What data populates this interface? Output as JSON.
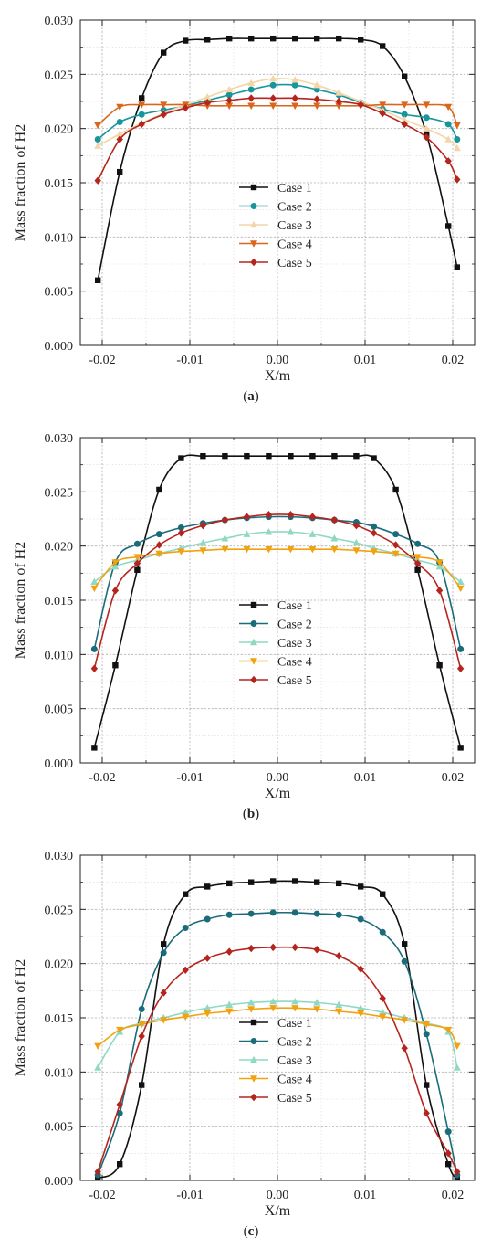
{
  "figure": {
    "panels": [
      {
        "caption_open": "(",
        "caption_letter": "a",
        "caption_close": ")"
      },
      {
        "caption_open": "(",
        "caption_letter": "b",
        "caption_close": ")"
      },
      {
        "caption_open": "(",
        "caption_letter": "c",
        "caption_close": ")"
      }
    ]
  },
  "chart_data": [
    {
      "type": "line",
      "xlabel": "X/m",
      "ylabel": "Mass fraction of H2",
      "xlim": [
        -0.0225,
        0.0225
      ],
      "ylim": [
        0,
        0.03
      ],
      "xticks": [
        "-0.02",
        "-0.01",
        "0.00",
        "0.01",
        "0.02"
      ],
      "yticks": [
        "0.000",
        "0.005",
        "0.010",
        "0.015",
        "0.020",
        "0.025",
        "0.030"
      ],
      "grid": true,
      "legend_position": "center-bottom",
      "series": [
        {
          "name": "Case 1",
          "color": "#111111",
          "marker": "square",
          "x": [
            -0.0205,
            -0.018,
            -0.0155,
            -0.013,
            -0.0105,
            -0.008,
            -0.0055,
            -0.003,
            -0.0005,
            0.002,
            0.0045,
            0.007,
            0.0095,
            0.012,
            0.0145,
            0.017,
            0.0195,
            0.0205
          ],
          "y": [
            0.006,
            0.016,
            0.0228,
            0.027,
            0.0281,
            0.0282,
            0.0283,
            0.0283,
            0.0283,
            0.0283,
            0.0283,
            0.0283,
            0.0282,
            0.0276,
            0.0248,
            0.0195,
            0.011,
            0.0072
          ]
        },
        {
          "name": "Case 2",
          "color": "#16969a",
          "marker": "circle",
          "x": [
            -0.0205,
            -0.018,
            -0.0155,
            -0.013,
            -0.0105,
            -0.008,
            -0.0055,
            -0.003,
            -0.0005,
            0.002,
            0.0045,
            0.007,
            0.0095,
            0.012,
            0.0145,
            0.017,
            0.0195,
            0.0205
          ],
          "y": [
            0.019,
            0.0206,
            0.0213,
            0.0217,
            0.0221,
            0.0226,
            0.0231,
            0.0236,
            0.024,
            0.024,
            0.0236,
            0.0231,
            0.0224,
            0.0218,
            0.0213,
            0.021,
            0.0204,
            0.019
          ]
        },
        {
          "name": "Case 3",
          "color": "#f2d6a8",
          "marker": "triangle-up",
          "x": [
            -0.0205,
            -0.018,
            -0.0155,
            -0.013,
            -0.0105,
            -0.008,
            -0.0055,
            -0.003,
            -0.0005,
            0.002,
            0.0045,
            0.007,
            0.0095,
            0.012,
            0.0145,
            0.017,
            0.0195,
            0.0205
          ],
          "y": [
            0.0184,
            0.0195,
            0.0205,
            0.0214,
            0.0222,
            0.0229,
            0.0236,
            0.0242,
            0.0246,
            0.0245,
            0.024,
            0.0233,
            0.0225,
            0.0217,
            0.0208,
            0.02,
            0.019,
            0.0182
          ]
        },
        {
          "name": "Case 4",
          "color": "#d9661a",
          "marker": "triangle-down",
          "x": [
            -0.0205,
            -0.018,
            -0.0155,
            -0.013,
            -0.0105,
            -0.008,
            -0.0055,
            -0.003,
            -0.0005,
            0.002,
            0.0045,
            0.007,
            0.0095,
            0.012,
            0.0145,
            0.017,
            0.0195,
            0.0205
          ],
          "y": [
            0.0203,
            0.022,
            0.0222,
            0.0222,
            0.0222,
            0.0221,
            0.0221,
            0.0221,
            0.0221,
            0.0221,
            0.0221,
            0.0221,
            0.0221,
            0.0222,
            0.0222,
            0.0222,
            0.022,
            0.0203
          ]
        },
        {
          "name": "Case 5",
          "color": "#b5251e",
          "marker": "diamond",
          "x": [
            -0.0205,
            -0.018,
            -0.0155,
            -0.013,
            -0.0105,
            -0.008,
            -0.0055,
            -0.003,
            -0.0005,
            0.002,
            0.0045,
            0.007,
            0.0095,
            0.012,
            0.0145,
            0.017,
            0.0195,
            0.0205
          ],
          "y": [
            0.0152,
            0.019,
            0.0204,
            0.0213,
            0.0219,
            0.0224,
            0.0226,
            0.0228,
            0.0228,
            0.0228,
            0.0227,
            0.0225,
            0.0222,
            0.0214,
            0.0204,
            0.0192,
            0.017,
            0.0153
          ]
        }
      ]
    },
    {
      "type": "line",
      "xlabel": "X/m",
      "ylabel": "Mass fraction of H2",
      "xlim": [
        -0.0225,
        0.0225
      ],
      "ylim": [
        0,
        0.03
      ],
      "xticks": [
        "-0.02",
        "-0.01",
        "0.00",
        "0.01",
        "0.02"
      ],
      "yticks": [
        "0.000",
        "0.005",
        "0.010",
        "0.015",
        "0.020",
        "0.025",
        "0.030"
      ],
      "grid": true,
      "legend_position": "center-bottom",
      "series": [
        {
          "name": "Case 1",
          "color": "#111111",
          "marker": "square",
          "x": [
            -0.0209,
            -0.0185,
            -0.016,
            -0.0135,
            -0.011,
            -0.0085,
            -0.006,
            -0.0035,
            -0.001,
            0.0015,
            0.004,
            0.0065,
            0.009,
            0.011,
            0.0135,
            0.016,
            0.0185,
            0.0209
          ],
          "y": [
            0.0014,
            0.009,
            0.0178,
            0.0252,
            0.0281,
            0.0283,
            0.0283,
            0.0283,
            0.0283,
            0.0283,
            0.0283,
            0.0283,
            0.0283,
            0.0281,
            0.0252,
            0.0178,
            0.009,
            0.0014
          ]
        },
        {
          "name": "Case 2",
          "color": "#1a6c7a",
          "marker": "circle",
          "x": [
            -0.0209,
            -0.0185,
            -0.016,
            -0.0135,
            -0.011,
            -0.0085,
            -0.006,
            -0.0035,
            -0.001,
            0.0015,
            0.004,
            0.0065,
            0.009,
            0.011,
            0.0135,
            0.016,
            0.0185,
            0.0209
          ],
          "y": [
            0.0105,
            0.0185,
            0.0202,
            0.0211,
            0.0217,
            0.0221,
            0.0224,
            0.0226,
            0.0227,
            0.0227,
            0.0226,
            0.0224,
            0.0222,
            0.0218,
            0.0211,
            0.0202,
            0.0185,
            0.0105
          ]
        },
        {
          "name": "Case 3",
          "color": "#8fd8c4",
          "marker": "triangle-up",
          "x": [
            -0.0209,
            -0.0185,
            -0.016,
            -0.0135,
            -0.011,
            -0.0085,
            -0.006,
            -0.0035,
            -0.001,
            0.0015,
            0.004,
            0.0065,
            0.009,
            0.011,
            0.0135,
            0.016,
            0.0185,
            0.0209
          ],
          "y": [
            0.0167,
            0.0181,
            0.0187,
            0.0193,
            0.0198,
            0.0203,
            0.0207,
            0.0211,
            0.0213,
            0.0213,
            0.0211,
            0.0207,
            0.0203,
            0.0198,
            0.0193,
            0.0187,
            0.0181,
            0.0167
          ]
        },
        {
          "name": "Case 4",
          "color": "#f2a20f",
          "marker": "triangle-down",
          "x": [
            -0.0209,
            -0.0185,
            -0.016,
            -0.0135,
            -0.011,
            -0.0085,
            -0.006,
            -0.0035,
            -0.001,
            0.0015,
            0.004,
            0.0065,
            0.009,
            0.011,
            0.0135,
            0.016,
            0.0185,
            0.0209
          ],
          "y": [
            0.0161,
            0.0185,
            0.019,
            0.0193,
            0.0195,
            0.0196,
            0.0197,
            0.0197,
            0.0197,
            0.0197,
            0.0197,
            0.0197,
            0.0196,
            0.0195,
            0.0193,
            0.019,
            0.0185,
            0.0161
          ]
        },
        {
          "name": "Case 5",
          "color": "#b5251e",
          "marker": "diamond",
          "x": [
            -0.0209,
            -0.0185,
            -0.016,
            -0.0135,
            -0.011,
            -0.0085,
            -0.006,
            -0.0035,
            -0.001,
            0.0015,
            0.004,
            0.0065,
            0.009,
            0.011,
            0.0135,
            0.016,
            0.0185,
            0.0209
          ],
          "y": [
            0.0087,
            0.0159,
            0.0184,
            0.0201,
            0.0212,
            0.0219,
            0.0224,
            0.0227,
            0.0229,
            0.0229,
            0.0227,
            0.0224,
            0.0219,
            0.0212,
            0.0201,
            0.0184,
            0.0159,
            0.0087
          ]
        }
      ]
    },
    {
      "type": "line",
      "xlabel": "X/m",
      "ylabel": "Mass fraction of H2",
      "xlim": [
        -0.0225,
        0.0225
      ],
      "ylim": [
        0,
        0.03
      ],
      "xticks": [
        "-0.02",
        "-0.01",
        "0.00",
        "0.01",
        "0.02"
      ],
      "yticks": [
        "0.000",
        "0.005",
        "0.010",
        "0.015",
        "0.020",
        "0.025",
        "0.030"
      ],
      "grid": true,
      "legend_position": "center-bottom",
      "series": [
        {
          "name": "Case 1",
          "color": "#111111",
          "marker": "square",
          "x": [
            -0.0205,
            -0.018,
            -0.0155,
            -0.013,
            -0.0105,
            -0.008,
            -0.0055,
            -0.003,
            -0.0005,
            0.002,
            0.0045,
            0.007,
            0.0095,
            0.012,
            0.0145,
            0.017,
            0.0195,
            0.0205
          ],
          "y": [
            0.0002,
            0.0015,
            0.0088,
            0.0218,
            0.0264,
            0.0271,
            0.0274,
            0.0275,
            0.0276,
            0.0276,
            0.0275,
            0.0274,
            0.0271,
            0.0264,
            0.0218,
            0.0088,
            0.0015,
            0.0002
          ]
        },
        {
          "name": "Case 2",
          "color": "#1a6c7a",
          "marker": "circle",
          "x": [
            -0.0205,
            -0.018,
            -0.0155,
            -0.013,
            -0.0105,
            -0.008,
            -0.0055,
            -0.003,
            -0.0005,
            0.002,
            0.0045,
            0.007,
            0.0095,
            0.012,
            0.0145,
            0.017,
            0.0195,
            0.0205
          ],
          "y": [
            0.0005,
            0.0062,
            0.0158,
            0.021,
            0.0233,
            0.0241,
            0.0245,
            0.0246,
            0.0247,
            0.0247,
            0.0246,
            0.0245,
            0.0241,
            0.0229,
            0.0202,
            0.0135,
            0.0045,
            0.0005
          ]
        },
        {
          "name": "Case 3",
          "color": "#8fd8c4",
          "marker": "triangle-up",
          "x": [
            -0.0205,
            -0.018,
            -0.0155,
            -0.013,
            -0.0105,
            -0.008,
            -0.0055,
            -0.003,
            -0.0005,
            0.002,
            0.0045,
            0.007,
            0.0095,
            0.012,
            0.0145,
            0.017,
            0.0195,
            0.0205
          ],
          "y": [
            0.0104,
            0.0137,
            0.0145,
            0.015,
            0.0155,
            0.0159,
            0.0162,
            0.0164,
            0.0165,
            0.0165,
            0.0164,
            0.0162,
            0.0159,
            0.0155,
            0.015,
            0.0145,
            0.0137,
            0.0104
          ]
        },
        {
          "name": "Case 4",
          "color": "#f2a20f",
          "marker": "triangle-down",
          "x": [
            -0.0205,
            -0.018,
            -0.0155,
            -0.013,
            -0.0105,
            -0.008,
            -0.0055,
            -0.003,
            -0.0005,
            0.002,
            0.0045,
            0.007,
            0.0095,
            0.012,
            0.0145,
            0.017,
            0.0195,
            0.0205
          ],
          "y": [
            0.0124,
            0.0139,
            0.0144,
            0.0148,
            0.0151,
            0.0154,
            0.0156,
            0.0158,
            0.0159,
            0.0159,
            0.0158,
            0.0156,
            0.0154,
            0.0151,
            0.0148,
            0.0144,
            0.0139,
            0.0124
          ]
        },
        {
          "name": "Case 5",
          "color": "#b5251e",
          "marker": "diamond",
          "x": [
            -0.0205,
            -0.018,
            -0.0155,
            -0.013,
            -0.0105,
            -0.008,
            -0.0055,
            -0.003,
            -0.0005,
            0.002,
            0.0045,
            0.007,
            0.0095,
            0.012,
            0.0145,
            0.017,
            0.0195,
            0.0205
          ],
          "y": [
            0.0008,
            0.007,
            0.0133,
            0.0173,
            0.0194,
            0.0205,
            0.0211,
            0.0214,
            0.0215,
            0.0215,
            0.0213,
            0.0207,
            0.0195,
            0.0168,
            0.0122,
            0.0062,
            0.0025,
            0.0008
          ]
        }
      ]
    }
  ]
}
